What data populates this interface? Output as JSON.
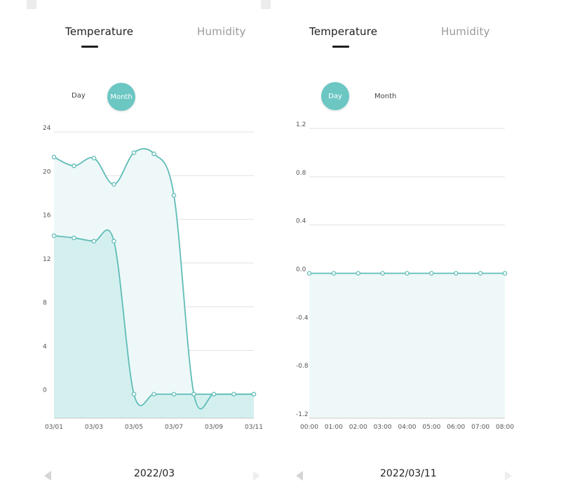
{
  "colors": {
    "accent": "#6cc7c3",
    "line": "#5fbcb7",
    "fill_light": "#eef8f8",
    "fill_strong": "#d3f0ef",
    "grid": "#e2e2e2"
  },
  "left_panel": {
    "tabs": [
      {
        "label": "Temperature",
        "active": true
      },
      {
        "label": "Humidity",
        "active": false
      }
    ],
    "period_toggle": {
      "day_label": "Day",
      "month_label": "Month",
      "selected": "Month"
    },
    "period_label": "2022/03",
    "chart_data": {
      "type": "area",
      "x": [
        "03/01",
        "03/02",
        "03/03",
        "03/04",
        "03/05",
        "03/06",
        "03/07",
        "03/08",
        "03/09",
        "03/10",
        "03/11"
      ],
      "x_tick_labels": [
        "03/01",
        "03/03",
        "03/05",
        "03/07",
        "03/09",
        "03/11"
      ],
      "y_ticks": [
        0,
        4,
        8,
        12,
        16,
        20,
        24
      ],
      "ylim": [
        -2.2,
        24
      ],
      "series": [
        {
          "values": [
            21.7,
            20.9,
            21.6,
            19.2,
            22.1,
            22.0,
            18.2,
            0,
            0,
            0,
            0
          ]
        },
        {
          "values": [
            14.5,
            14.3,
            14.0,
            14.0,
            0,
            0,
            0,
            0,
            0,
            0,
            0
          ]
        }
      ],
      "grid": true
    }
  },
  "right_panel": {
    "tabs": [
      {
        "label": "Temperature",
        "active": true
      },
      {
        "label": "Humidity",
        "active": false
      }
    ],
    "period_toggle": {
      "day_label": "Day",
      "month_label": "Month",
      "selected": "Day"
    },
    "period_label": "2022/03/11",
    "chart_data": {
      "type": "area",
      "x": [
        "00:00",
        "01:00",
        "02:00",
        "03:00",
        "04:00",
        "05:00",
        "06:00",
        "07:00",
        "08:00"
      ],
      "y_ticks": [
        -1.2,
        -0.8,
        -0.4,
        0.0,
        0.4,
        0.8,
        1.2
      ],
      "y_tick_labels": [
        "-1.2",
        "-0.8",
        "-0.4",
        "0.0",
        "0.4",
        "0.8",
        "1.2"
      ],
      "ylim": [
        -1.2,
        1.2
      ],
      "series": [
        {
          "values": [
            0,
            0,
            0,
            0,
            0,
            0,
            0,
            0,
            0
          ]
        }
      ],
      "grid": true
    }
  }
}
